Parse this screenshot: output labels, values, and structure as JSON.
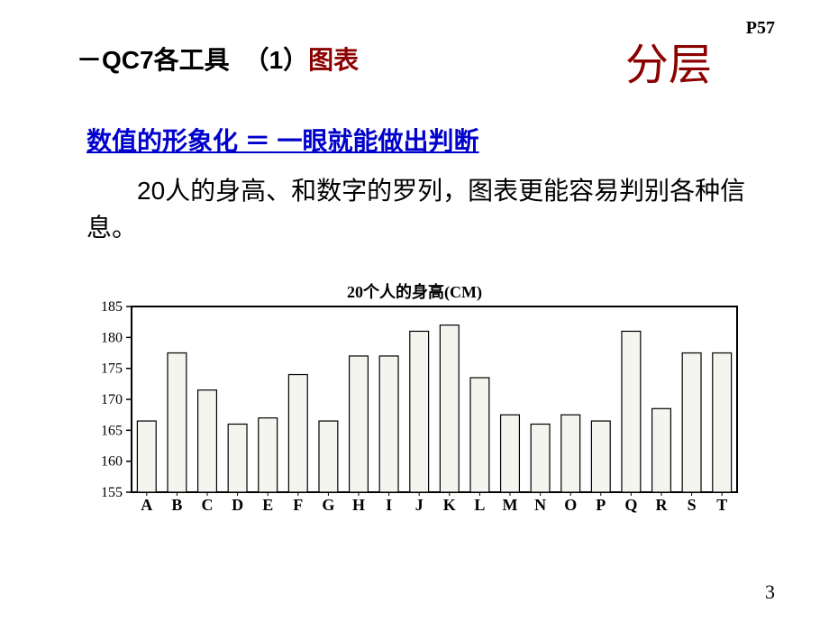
{
  "page_ref": "P57",
  "header": {
    "prefix": "－QC7各工具",
    "num": "（1）",
    "label_red": "图表"
  },
  "corner_label": "分层",
  "subheading": "数值的形象化 ＝ 一眼就能做出判断",
  "body": "20人的身高、和数字的罗列，图表更能容易判别各种信息。",
  "chart": {
    "type": "bar",
    "title": "20个人的身高(CM)",
    "categories": [
      "A",
      "B",
      "C",
      "D",
      "E",
      "F",
      "G",
      "H",
      "I",
      "J",
      "K",
      "L",
      "M",
      "N",
      "O",
      "P",
      "Q",
      "R",
      "S",
      "T"
    ],
    "values": [
      166.5,
      177.5,
      171.5,
      166,
      167,
      174,
      166.5,
      177,
      177,
      181,
      182,
      173.5,
      167.5,
      166,
      167.5,
      166.5,
      181,
      168.5,
      177.5,
      177.5
    ],
    "ylim": [
      155,
      185
    ],
    "ytick_step": 5,
    "bar_fill": "#f5f5f0",
    "bar_stroke": "#000000",
    "frame_stroke": "#000000",
    "frame_stroke_width": 2,
    "bar_stroke_width": 1.2,
    "tick_font_size": 16,
    "category_font_size": 18,
    "category_font_weight": "bold",
    "bar_width_ratio": 0.62,
    "background": "#ffffff",
    "ytick_labels": [
      "155",
      "160",
      "165",
      "170",
      "175",
      "180",
      "185"
    ],
    "title_fontsize": 18
  },
  "page_number": "3"
}
